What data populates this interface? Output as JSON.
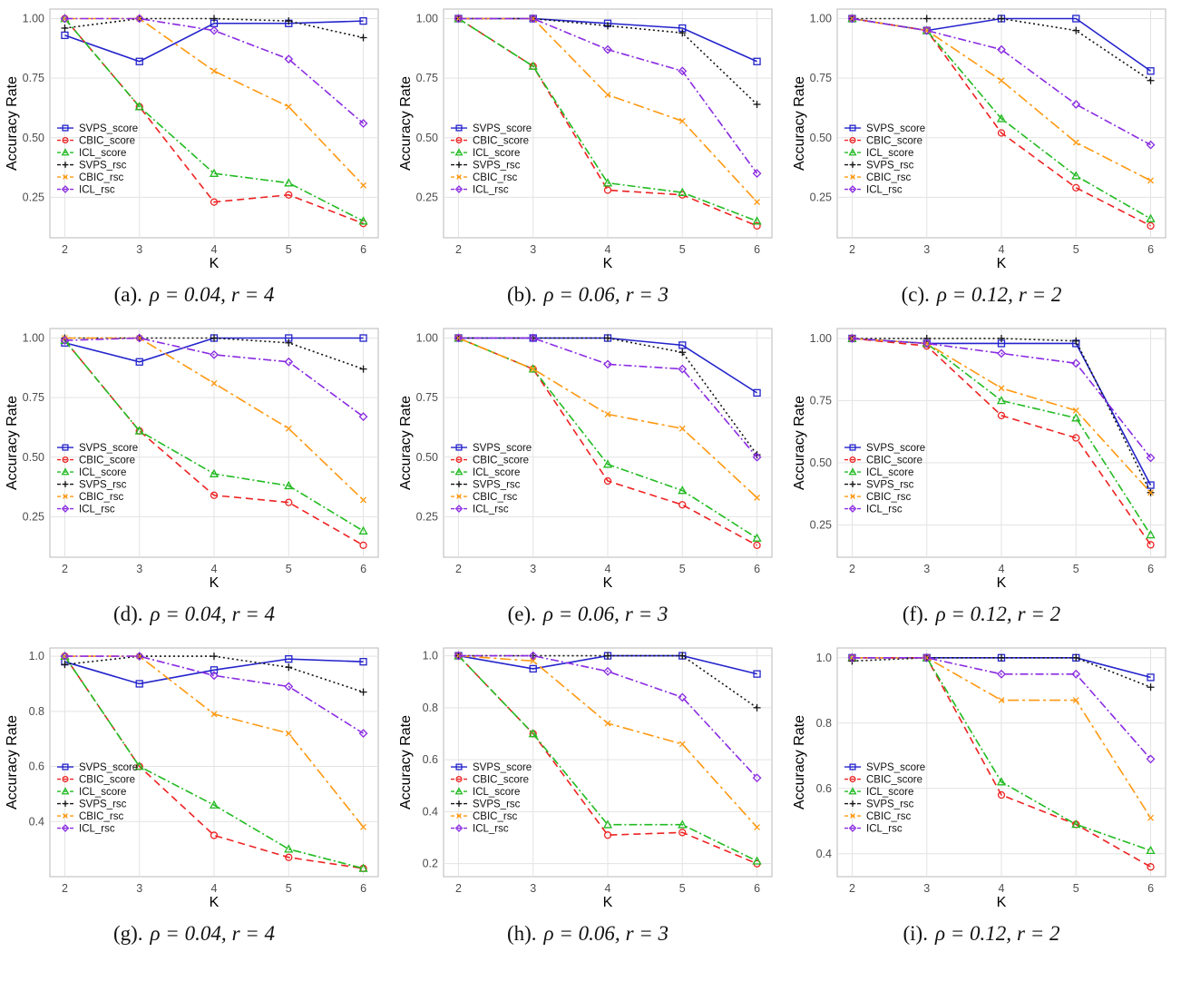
{
  "page": {
    "background": "#ffffff"
  },
  "series_styles": {
    "SVPS_score": {
      "color": "#2323cc",
      "dash": "",
      "marker": "square"
    },
    "CBIC_score": {
      "color": "#ee2222",
      "dash": "8,5",
      "marker": "circle"
    },
    "ICL_score": {
      "color": "#22bb22",
      "dash": "9,3,2,3",
      "marker": "triangle"
    },
    "SVPS_rsc": {
      "color": "#141414",
      "dash": "2,3",
      "marker": "plus"
    },
    "CBIC_rsc": {
      "color": "#ff9911",
      "dash": "12,4,3,4",
      "marker": "x"
    },
    "ICL_rsc": {
      "color": "#8a2be2",
      "dash": "9,3,2,3",
      "marker": "diamond"
    }
  },
  "chart_data": [
    {
      "id": "a",
      "type": "line",
      "caption": {
        "label": "(a).",
        "rho": "ρ = 0.04,",
        "r": "r = 4"
      },
      "x": [
        2,
        3,
        4,
        5,
        6
      ],
      "xlabel": "K",
      "ylabel": "Accuracy Rate",
      "xlim": [
        1.8,
        6.2
      ],
      "ylim": [
        0.08,
        1.04
      ],
      "yticks": [
        0.25,
        0.5,
        0.75,
        1.0
      ],
      "ytick_labels": [
        "0.25",
        "0.50",
        "0.75",
        "1.00"
      ],
      "grid": true,
      "legend_position": "left-bottom",
      "series": [
        {
          "name": "SVPS_score",
          "values": [
            0.93,
            0.82,
            0.98,
            0.98,
            0.99
          ]
        },
        {
          "name": "CBIC_score",
          "values": [
            1.0,
            0.63,
            0.23,
            0.26,
            0.14
          ]
        },
        {
          "name": "ICL_score",
          "values": [
            1.0,
            0.63,
            0.35,
            0.31,
            0.15
          ]
        },
        {
          "name": "SVPS_rsc",
          "values": [
            0.96,
            1.0,
            1.0,
            0.99,
            0.92
          ]
        },
        {
          "name": "CBIC_rsc",
          "values": [
            1.0,
            1.0,
            0.78,
            0.63,
            0.3
          ]
        },
        {
          "name": "ICL_rsc",
          "values": [
            1.0,
            1.0,
            0.95,
            0.83,
            0.56
          ]
        }
      ]
    },
    {
      "id": "b",
      "type": "line",
      "caption": {
        "label": "(b).",
        "rho": "ρ = 0.06,",
        "r": "r = 3"
      },
      "x": [
        2,
        3,
        4,
        5,
        6
      ],
      "xlabel": "K",
      "ylabel": "Accuracy Rate",
      "xlim": [
        1.8,
        6.2
      ],
      "ylim": [
        0.08,
        1.04
      ],
      "yticks": [
        0.25,
        0.5,
        0.75,
        1.0
      ],
      "ytick_labels": [
        "0.25",
        "0.50",
        "0.75",
        "1.00"
      ],
      "grid": true,
      "legend_position": "left-bottom",
      "series": [
        {
          "name": "SVPS_score",
          "values": [
            1.0,
            1.0,
            0.98,
            0.96,
            0.82
          ]
        },
        {
          "name": "CBIC_score",
          "values": [
            1.0,
            0.8,
            0.28,
            0.26,
            0.13
          ]
        },
        {
          "name": "ICL_score",
          "values": [
            1.0,
            0.8,
            0.31,
            0.27,
            0.15
          ]
        },
        {
          "name": "SVPS_rsc",
          "values": [
            1.0,
            1.0,
            0.97,
            0.94,
            0.64
          ]
        },
        {
          "name": "CBIC_rsc",
          "values": [
            1.0,
            1.0,
            0.68,
            0.57,
            0.23
          ]
        },
        {
          "name": "ICL_rsc",
          "values": [
            1.0,
            1.0,
            0.87,
            0.78,
            0.35
          ]
        }
      ]
    },
    {
      "id": "c",
      "type": "line",
      "caption": {
        "label": "(c).",
        "rho": "ρ = 0.12,",
        "r": "r = 2"
      },
      "x": [
        2,
        3,
        4,
        5,
        6
      ],
      "xlabel": "K",
      "ylabel": "Accuracy Rate",
      "xlim": [
        1.8,
        6.2
      ],
      "ylim": [
        0.08,
        1.04
      ],
      "yticks": [
        0.25,
        0.5,
        0.75,
        1.0
      ],
      "ytick_labels": [
        "0.25",
        "0.50",
        "0.75",
        "1.00"
      ],
      "grid": true,
      "legend_position": "left-bottom",
      "series": [
        {
          "name": "SVPS_score",
          "values": [
            1.0,
            0.95,
            1.0,
            1.0,
            0.78
          ]
        },
        {
          "name": "CBIC_score",
          "values": [
            1.0,
            0.95,
            0.52,
            0.29,
            0.13
          ]
        },
        {
          "name": "ICL_score",
          "values": [
            1.0,
            0.95,
            0.58,
            0.34,
            0.16
          ]
        },
        {
          "name": "SVPS_rsc",
          "values": [
            1.0,
            1.0,
            1.0,
            0.95,
            0.74
          ]
        },
        {
          "name": "CBIC_rsc",
          "values": [
            1.0,
            0.95,
            0.74,
            0.48,
            0.32
          ]
        },
        {
          "name": "ICL_rsc",
          "values": [
            1.0,
            0.95,
            0.87,
            0.64,
            0.47
          ]
        }
      ]
    },
    {
      "id": "d",
      "type": "line",
      "caption": {
        "label": "(d).",
        "rho": "ρ = 0.04,",
        "r": "r = 4"
      },
      "x": [
        2,
        3,
        4,
        5,
        6
      ],
      "xlabel": "K",
      "ylabel": "Accuracy Rate",
      "xlim": [
        1.8,
        6.2
      ],
      "ylim": [
        0.08,
        1.04
      ],
      "yticks": [
        0.25,
        0.5,
        0.75,
        1.0
      ],
      "ytick_labels": [
        "0.25",
        "0.50",
        "0.75",
        "1.00"
      ],
      "grid": true,
      "legend_position": "left-bottom",
      "series": [
        {
          "name": "SVPS_score",
          "values": [
            0.98,
            0.9,
            1.0,
            1.0,
            1.0
          ]
        },
        {
          "name": "CBIC_score",
          "values": [
            0.99,
            0.61,
            0.34,
            0.31,
            0.13
          ]
        },
        {
          "name": "ICL_score",
          "values": [
            0.99,
            0.61,
            0.43,
            0.38,
            0.19
          ]
        },
        {
          "name": "SVPS_rsc",
          "values": [
            1.0,
            1.0,
            1.0,
            0.98,
            0.87
          ]
        },
        {
          "name": "CBIC_rsc",
          "values": [
            1.0,
            1.0,
            0.81,
            0.62,
            0.32
          ]
        },
        {
          "name": "ICL_rsc",
          "values": [
            0.99,
            1.0,
            0.93,
            0.9,
            0.67
          ]
        }
      ]
    },
    {
      "id": "e",
      "type": "line",
      "caption": {
        "label": "(e).",
        "rho": "ρ = 0.06,",
        "r": "r = 3"
      },
      "x": [
        2,
        3,
        4,
        5,
        6
      ],
      "xlabel": "K",
      "ylabel": "Accuracy Rate",
      "xlim": [
        1.8,
        6.2
      ],
      "ylim": [
        0.08,
        1.04
      ],
      "yticks": [
        0.25,
        0.5,
        0.75,
        1.0
      ],
      "ytick_labels": [
        "0.25",
        "0.50",
        "0.75",
        "1.00"
      ],
      "grid": true,
      "legend_position": "left-bottom",
      "series": [
        {
          "name": "SVPS_score",
          "values": [
            1.0,
            1.0,
            1.0,
            0.97,
            0.77
          ]
        },
        {
          "name": "CBIC_score",
          "values": [
            1.0,
            0.87,
            0.4,
            0.3,
            0.13
          ]
        },
        {
          "name": "ICL_score",
          "values": [
            1.0,
            0.87,
            0.47,
            0.36,
            0.16
          ]
        },
        {
          "name": "SVPS_rsc",
          "values": [
            1.0,
            1.0,
            1.0,
            0.94,
            0.51
          ]
        },
        {
          "name": "CBIC_rsc",
          "values": [
            1.0,
            0.87,
            0.68,
            0.62,
            0.33
          ]
        },
        {
          "name": "ICL_rsc",
          "values": [
            1.0,
            1.0,
            0.89,
            0.87,
            0.5
          ]
        }
      ]
    },
    {
      "id": "f",
      "type": "line",
      "caption": {
        "label": "(f).",
        "rho": "ρ = 0.12,",
        "r": "r = 2"
      },
      "x": [
        2,
        3,
        4,
        5,
        6
      ],
      "xlabel": "K",
      "ylabel": "Accuracy Rate",
      "xlim": [
        1.8,
        6.2
      ],
      "ylim": [
        0.12,
        1.04
      ],
      "yticks": [
        0.25,
        0.5,
        0.75,
        1.0
      ],
      "ytick_labels": [
        "0.25",
        "0.50",
        "0.75",
        "1.00"
      ],
      "grid": true,
      "legend_position": "left-bottom",
      "series": [
        {
          "name": "SVPS_score",
          "values": [
            1.0,
            0.98,
            0.98,
            0.98,
            0.41
          ]
        },
        {
          "name": "CBIC_score",
          "values": [
            1.0,
            0.97,
            0.69,
            0.6,
            0.17
          ]
        },
        {
          "name": "ICL_score",
          "values": [
            1.0,
            0.98,
            0.75,
            0.68,
            0.21
          ]
        },
        {
          "name": "SVPS_rsc",
          "values": [
            1.0,
            1.0,
            1.0,
            0.99,
            0.38
          ]
        },
        {
          "name": "CBIC_rsc",
          "values": [
            1.0,
            0.98,
            0.8,
            0.71,
            0.38
          ]
        },
        {
          "name": "ICL_rsc",
          "values": [
            1.0,
            0.98,
            0.94,
            0.9,
            0.52
          ]
        }
      ]
    },
    {
      "id": "g",
      "type": "line",
      "caption": {
        "label": "(g).",
        "rho": "ρ = 0.04,",
        "r": "r = 4"
      },
      "x": [
        2,
        3,
        4,
        5,
        6
      ],
      "xlabel": "K",
      "ylabel": "Accuracy Rate",
      "xlim": [
        1.8,
        6.2
      ],
      "ylim": [
        0.2,
        1.03
      ],
      "yticks": [
        0.4,
        0.6,
        0.8,
        1.0
      ],
      "ytick_labels": [
        "0.4",
        "0.6",
        "0.8",
        "1.0"
      ],
      "grid": true,
      "legend_position": "left-bottom",
      "series": [
        {
          "name": "SVPS_score",
          "values": [
            0.98,
            0.9,
            0.95,
            0.99,
            0.98
          ]
        },
        {
          "name": "CBIC_score",
          "values": [
            1.0,
            0.6,
            0.35,
            0.27,
            0.23
          ]
        },
        {
          "name": "ICL_score",
          "values": [
            1.0,
            0.6,
            0.46,
            0.3,
            0.23
          ]
        },
        {
          "name": "SVPS_rsc",
          "values": [
            0.97,
            1.0,
            1.0,
            0.96,
            0.87
          ]
        },
        {
          "name": "CBIC_rsc",
          "values": [
            1.0,
            1.0,
            0.79,
            0.72,
            0.38
          ]
        },
        {
          "name": "ICL_rsc",
          "values": [
            1.0,
            1.0,
            0.93,
            0.89,
            0.72
          ]
        }
      ]
    },
    {
      "id": "h",
      "type": "line",
      "caption": {
        "label": "(h).",
        "rho": "ρ = 0.06,",
        "r": "r = 3"
      },
      "x": [
        2,
        3,
        4,
        5,
        6
      ],
      "xlabel": "K",
      "ylabel": "Accuracy Rate",
      "xlim": [
        1.8,
        6.2
      ],
      "ylim": [
        0.15,
        1.03
      ],
      "yticks": [
        0.2,
        0.4,
        0.6,
        0.8,
        1.0
      ],
      "ytick_labels": [
        "0.2",
        "0.4",
        "0.6",
        "0.8",
        "1.0"
      ],
      "grid": true,
      "legend_position": "left-bottom",
      "series": [
        {
          "name": "SVPS_score",
          "values": [
            1.0,
            0.95,
            1.0,
            1.0,
            0.93
          ]
        },
        {
          "name": "CBIC_score",
          "values": [
            1.0,
            0.7,
            0.31,
            0.32,
            0.2
          ]
        },
        {
          "name": "ICL_score",
          "values": [
            1.0,
            0.7,
            0.35,
            0.35,
            0.21
          ]
        },
        {
          "name": "SVPS_rsc",
          "values": [
            1.0,
            1.0,
            1.0,
            1.0,
            0.8
          ]
        },
        {
          "name": "CBIC_rsc",
          "values": [
            1.0,
            0.98,
            0.74,
            0.66,
            0.34
          ]
        },
        {
          "name": "ICL_rsc",
          "values": [
            1.0,
            1.0,
            0.94,
            0.84,
            0.53
          ]
        }
      ]
    },
    {
      "id": "i",
      "type": "line",
      "caption": {
        "label": "(i).",
        "rho": "ρ = 0.12,",
        "r": "r = 2"
      },
      "x": [
        2,
        3,
        4,
        5,
        6
      ],
      "xlabel": "K",
      "ylabel": "Accuracy Rate",
      "xlim": [
        1.8,
        6.2
      ],
      "ylim": [
        0.33,
        1.03
      ],
      "yticks": [
        0.4,
        0.6,
        0.8,
        1.0
      ],
      "ytick_labels": [
        "0.4",
        "0.6",
        "0.8",
        "1.0"
      ],
      "grid": true,
      "legend_position": "left-bottom",
      "series": [
        {
          "name": "SVPS_score",
          "values": [
            1.0,
            1.0,
            1.0,
            1.0,
            0.94
          ]
        },
        {
          "name": "CBIC_score",
          "values": [
            1.0,
            1.0,
            0.58,
            0.49,
            0.36
          ]
        },
        {
          "name": "ICL_score",
          "values": [
            1.0,
            1.0,
            0.62,
            0.49,
            0.41
          ]
        },
        {
          "name": "SVPS_rsc",
          "values": [
            0.99,
            1.0,
            1.0,
            1.0,
            0.91
          ]
        },
        {
          "name": "CBIC_rsc",
          "values": [
            1.0,
            1.0,
            0.87,
            0.87,
            0.51
          ]
        },
        {
          "name": "ICL_rsc",
          "values": [
            1.0,
            1.0,
            0.95,
            0.95,
            0.69
          ]
        }
      ]
    }
  ]
}
